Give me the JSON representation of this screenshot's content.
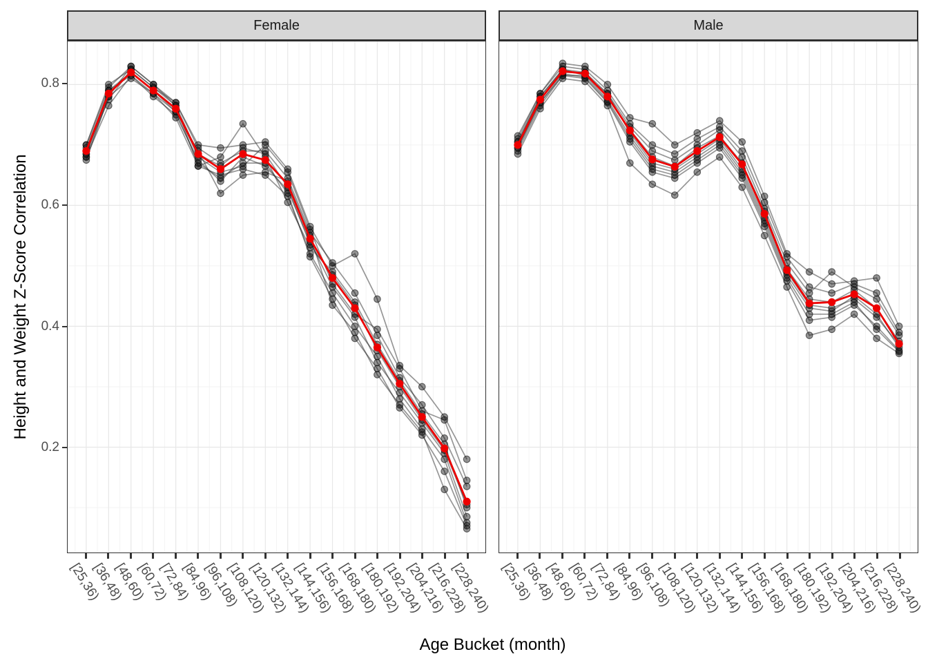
{
  "chart_data": {
    "type": "line",
    "title": "",
    "xlabel": "Age Bucket (month)",
    "ylabel": "Height and Weight Z-Score Correlation",
    "legend": "none",
    "grid": true,
    "ylim": [
      0.026,
      0.871
    ],
    "y_ticks": [
      0.2,
      0.4,
      0.6,
      0.8
    ],
    "y_minor_ticks": [
      0.1,
      0.3,
      0.5,
      0.7
    ],
    "colors": {
      "mean_line": "#ed0000",
      "gray_line": "rgba(45,45,45,0.5)",
      "gray_point_fill": "rgba(20,20,20,0.45)",
      "gray_point_stroke": "rgba(0,0,0,0.55)",
      "grid_major": "#e7e7e7",
      "grid_minor": "#f3f3f3",
      "strip_bg": "#d7d7d7"
    },
    "categories": [
      "[25,36)",
      "[36,48)",
      "[48,60)",
      "[60,72)",
      "[72,84)",
      "[84,96)",
      "[96,108)",
      "[108,120)",
      "[120,132)",
      "[132,144)",
      "[144,156)",
      "[156,168)",
      "[168,180)",
      "[180,192)",
      "[192,204)",
      "[204,216)",
      "[216,228)",
      "[228,240)"
    ],
    "facets": [
      {
        "label": "Female",
        "mean": {
          "name": "mean",
          "values": [
            0.69,
            0.785,
            0.82,
            0.79,
            0.76,
            0.685,
            0.66,
            0.685,
            0.675,
            0.635,
            0.545,
            0.48,
            0.43,
            0.365,
            0.305,
            0.25,
            0.198,
            0.11
          ]
        },
        "series": [
          {
            "name": "run-1",
            "values": [
              0.675,
              0.78,
              0.83,
              0.8,
              0.77,
              0.7,
              0.695,
              0.7,
              0.705,
              0.66,
              0.565,
              0.5,
              0.52,
              0.445,
              0.335,
              0.3,
              0.25,
              0.18
            ]
          },
          {
            "name": "run-2",
            "values": [
              0.68,
              0.765,
              0.815,
              0.785,
              0.755,
              0.69,
              0.62,
              0.65,
              0.655,
              0.64,
              0.55,
              0.435,
              0.39,
              0.32,
              0.27,
              0.225,
              0.13,
              0.065
            ]
          },
          {
            "name": "run-3",
            "values": [
              0.7,
              0.8,
              0.825,
              0.795,
              0.765,
              0.665,
              0.68,
              0.735,
              0.68,
              0.605,
              0.53,
              0.49,
              0.44,
              0.37,
              0.31,
              0.255,
              0.205,
              0.1
            ]
          },
          {
            "name": "run-4",
            "values": [
              0.685,
              0.785,
              0.82,
              0.79,
              0.76,
              0.68,
              0.655,
              0.665,
              0.7,
              0.655,
              0.56,
              0.47,
              0.42,
              0.395,
              0.33,
              0.26,
              0.245,
              0.145
            ]
          },
          {
            "name": "run-5",
            "values": [
              0.695,
              0.79,
              0.815,
              0.78,
              0.75,
              0.675,
              0.64,
              0.68,
              0.665,
              0.625,
              0.54,
              0.465,
              0.415,
              0.34,
              0.29,
              0.24,
              0.19,
              0.085
            ]
          },
          {
            "name": "run-6",
            "values": [
              0.69,
              0.775,
              0.825,
              0.795,
              0.77,
              0.695,
              0.67,
              0.69,
              0.69,
              0.645,
              0.555,
              0.505,
              0.455,
              0.385,
              0.315,
              0.27,
              0.215,
              0.135
            ]
          },
          {
            "name": "run-7",
            "values": [
              0.68,
              0.78,
              0.81,
              0.785,
              0.745,
              0.665,
              0.65,
              0.66,
              0.65,
              0.615,
              0.52,
              0.455,
              0.4,
              0.35,
              0.28,
              0.23,
              0.18,
              0.075
            ]
          },
          {
            "name": "run-8",
            "values": [
              0.7,
              0.795,
              0.83,
              0.8,
              0.765,
              0.685,
              0.665,
              0.695,
              0.685,
              0.63,
              0.535,
              0.485,
              0.435,
              0.36,
              0.3,
              0.245,
              0.195,
              0.105
            ]
          },
          {
            "name": "run-9",
            "values": [
              0.685,
              0.79,
              0.82,
              0.79,
              0.755,
              0.67,
              0.645,
              0.67,
              0.67,
              0.62,
              0.515,
              0.445,
              0.38,
              0.33,
              0.265,
              0.22,
              0.16,
              0.07
            ]
          }
        ]
      },
      {
        "label": "Male",
        "mean": {
          "name": "mean",
          "values": [
            0.7,
            0.775,
            0.822,
            0.818,
            0.78,
            0.724,
            0.676,
            0.664,
            0.69,
            0.713,
            0.668,
            0.586,
            0.493,
            0.438,
            0.44,
            0.453,
            0.43,
            0.371
          ]
        },
        "series": [
          {
            "name": "run-1",
            "values": [
              0.715,
              0.785,
              0.835,
              0.83,
              0.8,
              0.745,
              0.735,
              0.7,
              0.72,
              0.74,
              0.705,
              0.615,
              0.52,
              0.49,
              0.47,
              0.475,
              0.48,
              0.4
            ]
          },
          {
            "name": "run-2",
            "values": [
              0.685,
              0.76,
              0.81,
              0.805,
              0.765,
              0.67,
              0.635,
              0.617,
              0.655,
              0.68,
              0.63,
              0.55,
              0.465,
              0.385,
              0.395,
              0.42,
              0.38,
              0.355
            ]
          },
          {
            "name": "run-3",
            "values": [
              0.705,
              0.78,
              0.825,
              0.82,
              0.785,
              0.73,
              0.69,
              0.675,
              0.7,
              0.725,
              0.68,
              0.595,
              0.505,
              0.455,
              0.49,
              0.465,
              0.445,
              0.385
            ]
          },
          {
            "name": "run-4",
            "values": [
              0.695,
              0.77,
              0.815,
              0.815,
              0.775,
              0.715,
              0.665,
              0.655,
              0.68,
              0.705,
              0.655,
              0.575,
              0.485,
              0.43,
              0.425,
              0.45,
              0.42,
              0.365
            ]
          },
          {
            "name": "run-5",
            "values": [
              0.71,
              0.785,
              0.83,
              0.825,
              0.79,
              0.735,
              0.7,
              0.685,
              0.71,
              0.73,
              0.69,
              0.605,
              0.515,
              0.465,
              0.455,
              0.47,
              0.455,
              0.39
            ]
          },
          {
            "name": "run-6",
            "values": [
              0.69,
              0.765,
              0.815,
              0.81,
              0.77,
              0.705,
              0.655,
              0.645,
              0.67,
              0.695,
              0.645,
              0.565,
              0.475,
              0.41,
              0.415,
              0.435,
              0.4,
              0.36
            ]
          },
          {
            "name": "run-7",
            "values": [
              0.7,
              0.775,
              0.82,
              0.82,
              0.78,
              0.725,
              0.68,
              0.665,
              0.695,
              0.715,
              0.67,
              0.59,
              0.495,
              0.445,
              0.44,
              0.46,
              0.43,
              0.375
            ]
          },
          {
            "name": "run-8",
            "values": [
              0.705,
              0.78,
              0.825,
              0.815,
              0.785,
              0.72,
              0.67,
              0.66,
              0.685,
              0.71,
              0.66,
              0.58,
              0.49,
              0.435,
              0.43,
              0.445,
              0.415,
              0.37
            ]
          },
          {
            "name": "run-9",
            "values": [
              0.695,
              0.77,
              0.818,
              0.812,
              0.772,
              0.71,
              0.66,
              0.65,
              0.675,
              0.7,
              0.65,
              0.57,
              0.48,
              0.42,
              0.42,
              0.44,
              0.395,
              0.358
            ]
          }
        ]
      }
    ]
  }
}
